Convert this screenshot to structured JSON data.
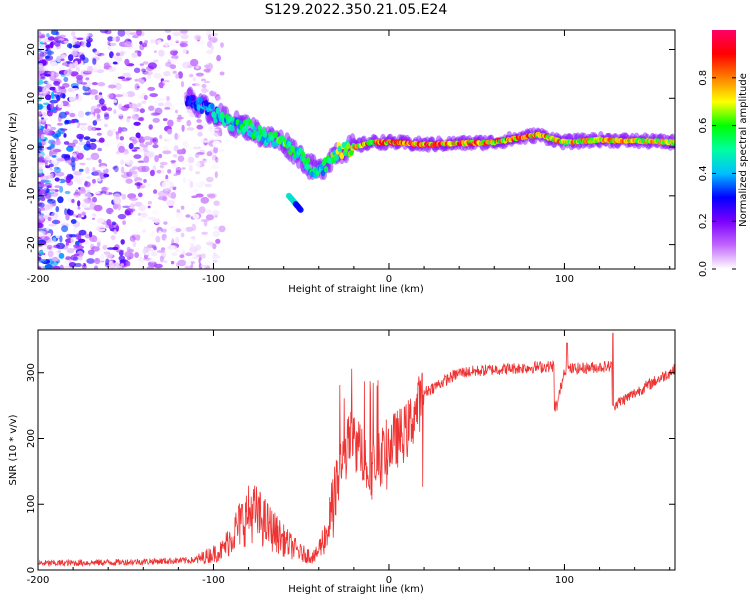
{
  "chart_data": [
    {
      "type": "heatmap",
      "title": "S129.2022.350.21.05.E24",
      "xlabel": "Height of straight line (km)",
      "ylabel": "Frequency (Hz)",
      "xlim": [
        -200,
        163
      ],
      "ylim": [
        -25,
        24
      ],
      "xticks": [
        -200,
        -100,
        0,
        100
      ],
      "yticks": [
        -20,
        -10,
        0,
        10,
        20
      ],
      "colorbar": {
        "label": "Normalized spectral amplitude",
        "range": [
          0,
          1
        ],
        "ticks": [
          0.0,
          0.2,
          0.4,
          0.6,
          0.8
        ],
        "colors": [
          "#ffffff",
          "#c266ff",
          "#7a00ff",
          "#0000ff",
          "#00bfff",
          "#00ff9f",
          "#00ff00",
          "#ffff00",
          "#ff8000",
          "#ff0000",
          "#ff0066"
        ]
      },
      "ridge": {
        "x": [
          -115,
          -100,
          -90,
          -80,
          -70,
          -60,
          -50,
          -45,
          -40,
          -35,
          -30,
          -20,
          -10,
          0,
          20,
          60,
          85,
          100,
          120,
          163
        ],
        "y": [
          10,
          7,
          5,
          4,
          2,
          1,
          -2,
          -4,
          -5,
          -3,
          -1,
          0,
          1,
          1,
          0.5,
          1,
          2.5,
          1,
          1.5,
          1
        ],
        "amp": [
          0.35,
          0.5,
          0.55,
          0.6,
          0.6,
          0.65,
          0.6,
          0.55,
          0.55,
          0.6,
          0.7,
          0.85,
          0.9,
          0.95,
          1.0,
          0.9,
          0.95,
          0.85,
          0.85,
          0.8
        ]
      },
      "side_feature": {
        "x": [
          -57,
          -50
        ],
        "y": [
          -10,
          -13
        ]
      }
    },
    {
      "type": "line",
      "xlabel": "Height of straight line (km)",
      "ylabel": "SNR (10 * v/v)",
      "xlim": [
        -200,
        163
      ],
      "ylim": [
        0,
        365
      ],
      "xticks": [
        -200,
        -100,
        0,
        100
      ],
      "yticks": [
        0,
        100,
        200,
        300
      ],
      "series": [
        {
          "name": "SNR",
          "color": "#ee3333",
          "x": [
            -200,
            -150,
            -110,
            -95,
            -85,
            -78,
            -70,
            -60,
            -50,
            -42,
            -35,
            -28,
            -22,
            -15,
            -10,
            0,
            10,
            20,
            40,
            60,
            94,
            95,
            100,
            127,
            128,
            163
          ],
          "y": [
            10,
            12,
            15,
            30,
            70,
            90,
            70,
            45,
            25,
            20,
            60,
            150,
            200,
            180,
            150,
            190,
            210,
            270,
            300,
            305,
            310,
            240,
            305,
            310,
            250,
            305
          ]
        }
      ]
    }
  ]
}
